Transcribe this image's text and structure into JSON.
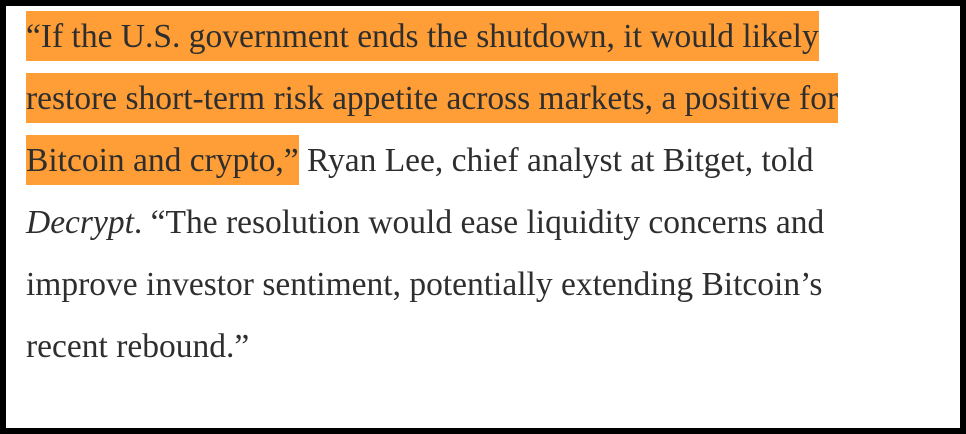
{
  "paragraph": {
    "lines": [
      [
        {
          "text": "“If the U.S. government ends the shutdown, it would likely",
          "highlight": true
        }
      ],
      [
        {
          "text": "restore short-term risk appetite across markets, a positive for",
          "highlight": true
        }
      ],
      [
        {
          "text": "Bitcoin and crypto,”",
          "highlight": true
        },
        {
          "text": " Ryan Lee, chief analyst at Bitget, told"
        }
      ],
      [
        {
          "text": "Decrypt",
          "italic": true
        },
        {
          "text": ". “The resolution would ease liquidity concerns and"
        }
      ],
      [
        {
          "text": "improve investor sentiment, potentially extending Bitcoin’s"
        }
      ],
      [
        {
          "text": "recent rebound.”"
        }
      ]
    ]
  }
}
